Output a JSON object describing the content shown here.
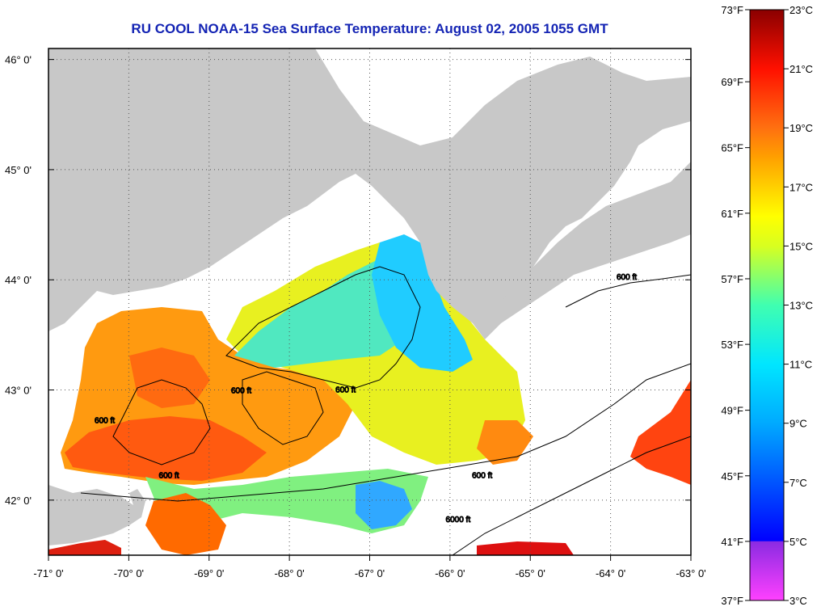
{
  "title": "RU COOL  NOAA-15  Sea Surface Temperature:  August 02, 2005 1055 GMT",
  "colors": {
    "title": "#1424b4",
    "land": "#c8c8c8",
    "no_data": "#ffffff",
    "contour": "#000000"
  },
  "map": {
    "lon_range": [
      -71,
      -63
    ],
    "lat_range": [
      41.5,
      46.1
    ],
    "lon_ticks": [
      {
        "lon": -71,
        "label": "-71° 0'"
      },
      {
        "lon": -70,
        "label": "-70° 0'"
      },
      {
        "lon": -69,
        "label": "-69° 0'"
      },
      {
        "lon": -68,
        "label": "-68° 0'"
      },
      {
        "lon": -67,
        "label": "-67° 0'"
      },
      {
        "lon": -66,
        "label": "-66° 0'"
      },
      {
        "lon": -65,
        "label": "-65° 0'"
      },
      {
        "lon": -64,
        "label": "-64° 0'"
      },
      {
        "lon": -63,
        "label": "-63° 0'"
      }
    ],
    "lat_ticks": [
      {
        "lat": 46,
        "label": "46° 0'"
      },
      {
        "lat": 45,
        "label": "45° 0'"
      },
      {
        "lat": 44,
        "label": "44° 0'"
      },
      {
        "lat": 43,
        "label": "43° 0'"
      },
      {
        "lat": 42,
        "label": "42° 0'"
      }
    ],
    "contour_labels": [
      {
        "text": "600 ft",
        "lon": -70.3,
        "lat": 42.7
      },
      {
        "text": "600 ft",
        "lon": -68.6,
        "lat": 42.97
      },
      {
        "text": "600 ft",
        "lon": -67.3,
        "lat": 42.98
      },
      {
        "text": "600 ft",
        "lon": -65.6,
        "lat": 42.2
      },
      {
        "text": "600 ft",
        "lon": -63.8,
        "lat": 44.0
      },
      {
        "text": "600 ft",
        "lon": -69.5,
        "lat": 42.2
      },
      {
        "text": "6000 ft",
        "lon": -65.9,
        "lat": 41.8
      }
    ]
  },
  "colorbar": {
    "range_c": [
      3,
      23
    ],
    "left_labels": [
      {
        "value_c": 23,
        "label": "73°F"
      },
      {
        "value_c": 20.56,
        "label": "69°F"
      },
      {
        "value_c": 18.33,
        "label": "65°F"
      },
      {
        "value_c": 16.11,
        "label": "61°F"
      },
      {
        "value_c": 13.89,
        "label": "57°F"
      },
      {
        "value_c": 11.67,
        "label": "53°F"
      },
      {
        "value_c": 9.44,
        "label": "49°F"
      },
      {
        "value_c": 7.22,
        "label": "45°F"
      },
      {
        "value_c": 5,
        "label": "41°F"
      },
      {
        "value_c": 3,
        "label": "37°F"
      }
    ],
    "right_labels": [
      {
        "value_c": 23,
        "label": "23°C"
      },
      {
        "value_c": 21,
        "label": "21°C"
      },
      {
        "value_c": 19,
        "label": "19°C"
      },
      {
        "value_c": 17,
        "label": "17°C"
      },
      {
        "value_c": 15,
        "label": "15°C"
      },
      {
        "value_c": 13,
        "label": "13°C"
      },
      {
        "value_c": 11,
        "label": "11°C"
      },
      {
        "value_c": 9,
        "label": "9°C"
      },
      {
        "value_c": 7,
        "label": "7°C"
      },
      {
        "value_c": 5,
        "label": "5°C"
      },
      {
        "value_c": 3,
        "label": "3°C"
      }
    ],
    "stops": [
      {
        "value_c": 3,
        "color": "#ff40ff"
      },
      {
        "value_c": 5,
        "color": "#8a2be2"
      },
      {
        "value_c": 5.01,
        "color": "#0000ff"
      },
      {
        "value_c": 9,
        "color": "#00aaff"
      },
      {
        "value_c": 11,
        "color": "#00e6ff"
      },
      {
        "value_c": 13,
        "color": "#40ffb0"
      },
      {
        "value_c": 15,
        "color": "#d8ff20"
      },
      {
        "value_c": 16,
        "color": "#ffff00"
      },
      {
        "value_c": 18,
        "color": "#ffa000"
      },
      {
        "value_c": 19,
        "color": "#ff7010"
      },
      {
        "value_c": 21,
        "color": "#ff1000"
      },
      {
        "value_c": 23,
        "color": "#8a0000"
      }
    ]
  }
}
